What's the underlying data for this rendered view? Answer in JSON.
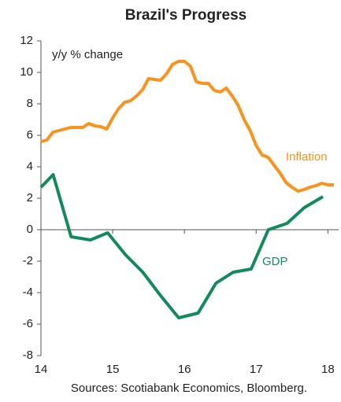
{
  "chart_data": {
    "type": "line",
    "title": "Brazil's Progress",
    "y_label": "y/y % change",
    "source": "Sources: Scotiabank Economics, Bloomberg.",
    "xlim": [
      14,
      18.15
    ],
    "xticks": [
      14,
      15,
      16,
      17,
      18
    ],
    "ylim": [
      -8,
      12
    ],
    "yticks": [
      -8,
      -6,
      -4,
      -2,
      0,
      2,
      4,
      6,
      8,
      10,
      12
    ],
    "series": [
      {
        "name": "Inflation",
        "color": "#f7931e",
        "x": [
          14,
          14.083,
          14.167,
          14.25,
          14.333,
          14.417,
          14.5,
          14.583,
          14.667,
          14.75,
          14.833,
          14.917,
          15,
          15.083,
          15.167,
          15.25,
          15.333,
          15.417,
          15.5,
          15.583,
          15.667,
          15.75,
          15.833,
          15.917,
          16,
          16.083,
          16.167,
          16.25,
          16.333,
          16.417,
          16.5,
          16.583,
          16.667,
          16.75,
          16.833,
          16.917,
          17,
          17.083,
          17.167,
          17.25,
          17.333,
          17.417,
          17.5,
          17.583,
          17.667,
          17.75,
          17.833,
          17.917,
          18,
          18.083
        ],
        "values": [
          5.6,
          5.7,
          6.2,
          6.3,
          6.4,
          6.5,
          6.5,
          6.5,
          6.75,
          6.6,
          6.55,
          6.4,
          7.1,
          7.7,
          8.1,
          8.2,
          8.5,
          8.9,
          9.6,
          9.55,
          9.5,
          9.9,
          10.5,
          10.7,
          10.7,
          10.4,
          9.4,
          9.3,
          9.3,
          8.85,
          8.75,
          9.0,
          8.5,
          7.9,
          7.0,
          6.3,
          5.35,
          4.75,
          4.6,
          4.1,
          3.6,
          3.0,
          2.7,
          2.45,
          2.55,
          2.7,
          2.8,
          2.95,
          2.85,
          2.85
        ]
      },
      {
        "name": "GDP",
        "color": "#138a5e",
        "x": [
          14,
          14.17,
          14.42,
          14.69,
          14.93,
          15.18,
          15.42,
          15.67,
          15.92,
          16.19,
          16.44,
          16.68,
          16.93,
          17.17,
          17.43,
          17.67,
          17.93
        ],
        "values": [
          2.7,
          3.5,
          -0.45,
          -0.65,
          -0.2,
          -1.6,
          -2.7,
          -4.2,
          -5.6,
          -5.3,
          -3.4,
          -2.7,
          -2.5,
          0,
          0.4,
          1.4,
          2.1
        ]
      }
    ]
  }
}
